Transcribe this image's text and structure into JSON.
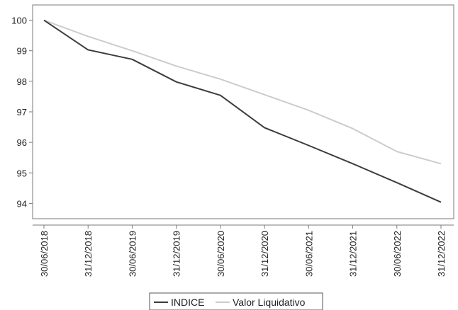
{
  "chart_data": {
    "type": "line",
    "x": [
      "30/06/2018",
      "31/12/2018",
      "30/06/2019",
      "31/12/2019",
      "30/06/2020",
      "31/12/2020",
      "30/06/2021",
      "31/12/2021",
      "30/06/2022",
      "31/12/2022"
    ],
    "series": [
      {
        "name": "INDICE",
        "color": "#3c3c3c",
        "values": [
          100.0,
          99.03,
          98.72,
          97.98,
          97.54,
          96.48,
          95.9,
          95.3,
          94.68,
          94.04
        ]
      },
      {
        "name": "Valor Liquidativo",
        "color": "#cccccc",
        "values": [
          100.0,
          99.47,
          99.0,
          98.5,
          98.07,
          97.56,
          97.05,
          96.45,
          95.7,
          95.3
        ]
      }
    ],
    "yticks": [
      "94",
      "95",
      "96",
      "97",
      "98",
      "99",
      "100"
    ],
    "ylim": [
      93.5,
      100.5
    ],
    "grid": false,
    "legend_position": "bottom-center"
  }
}
